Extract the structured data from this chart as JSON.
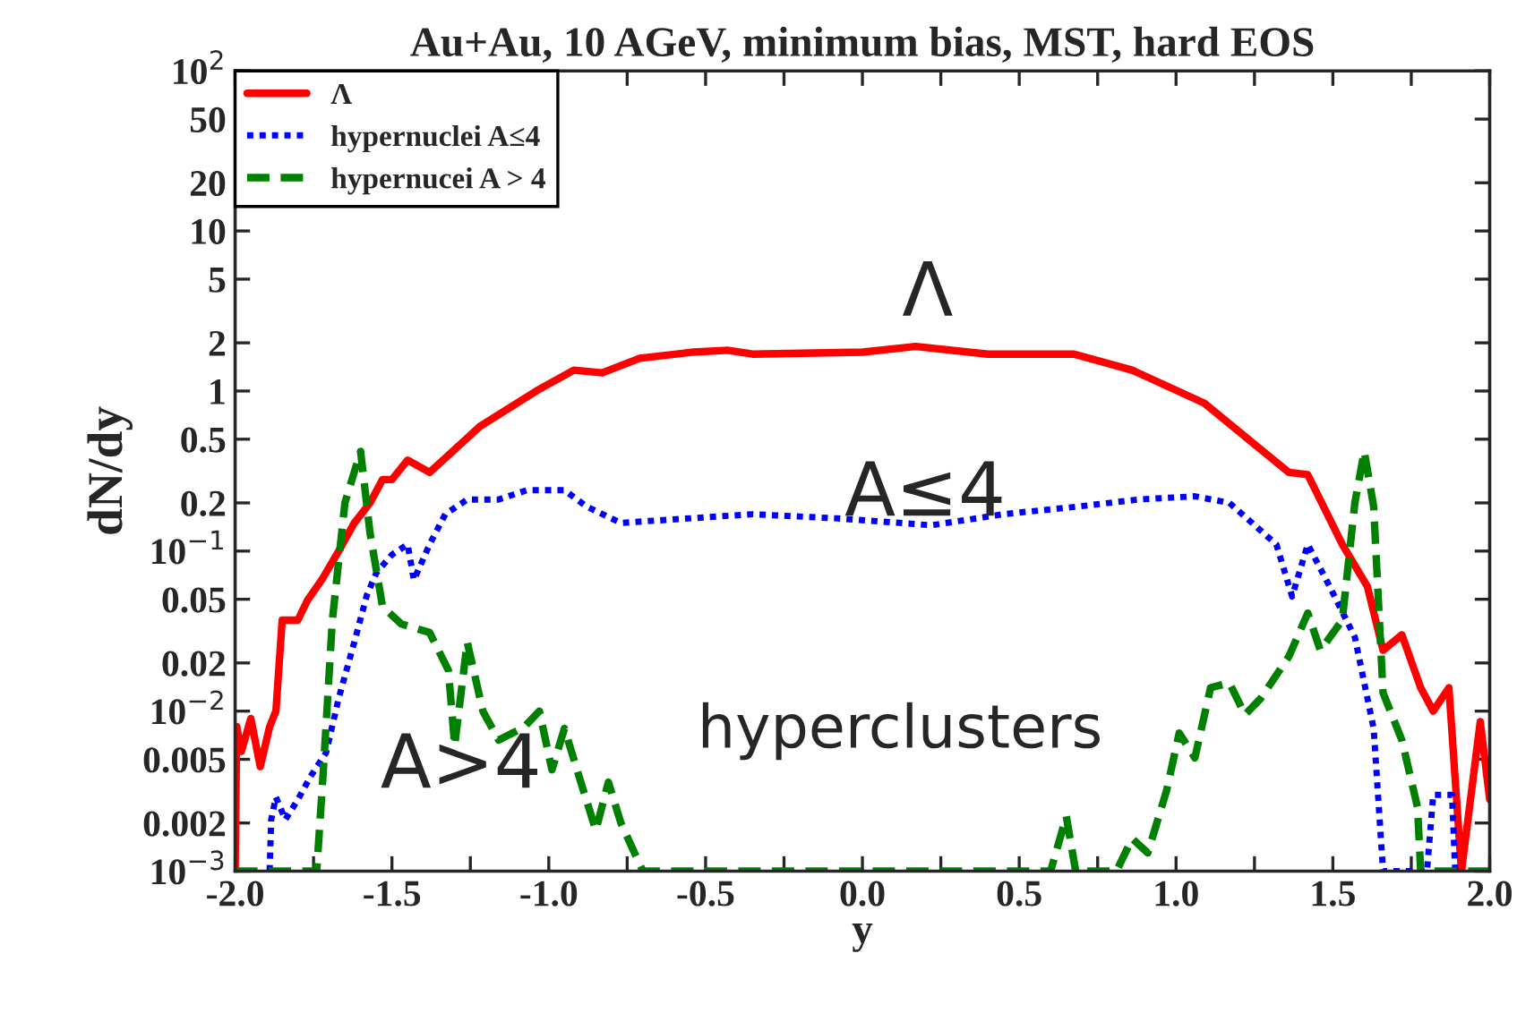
{
  "chart_data": {
    "type": "line",
    "title": "Au+Au, 10 AGeV, minimum bias, MST, hard EOS",
    "xlabel": "y",
    "ylabel": "dN/dy",
    "log": "y",
    "grid": false,
    "legend": "top left",
    "xlim": [
      -2.0,
      2.0
    ],
    "ylim": [
      0.001,
      100
    ],
    "xticks": [
      {
        "value": -2.0,
        "label": "-2.0"
      },
      {
        "value": -1.75,
        "label": null
      },
      {
        "value": -1.5,
        "label": "-1.5"
      },
      {
        "value": -1.25,
        "label": null
      },
      {
        "value": -1.0,
        "label": "-1.0"
      },
      {
        "value": -0.75,
        "label": null
      },
      {
        "value": -0.5,
        "label": "-0.5"
      },
      {
        "value": -0.25,
        "label": null
      },
      {
        "value": 0.0,
        "label": "0.0"
      },
      {
        "value": 0.25,
        "label": null
      },
      {
        "value": 0.5,
        "label": "0.5"
      },
      {
        "value": 0.75,
        "label": null
      },
      {
        "value": 1.0,
        "label": "1.0"
      },
      {
        "value": 1.25,
        "label": null
      },
      {
        "value": 1.5,
        "label": "1.5"
      },
      {
        "value": 1.75,
        "label": null
      },
      {
        "value": 2.0,
        "label": "2.0"
      }
    ],
    "yticks": [
      {
        "value": 0.001,
        "label": "10$^{−3}$"
      },
      0.002,
      0.005,
      {
        "value": 0.01,
        "label": "10$^{−2}$"
      },
      0.02,
      0.05,
      {
        "value": 0.1,
        "label": "10$^{−1}$"
      },
      0.2,
      0.5,
      1,
      2,
      5,
      10,
      20,
      50,
      {
        "value": 100,
        "label": "10$^{2}$"
      }
    ],
    "series": [
      {
        "name": "Λ",
        "color": "#ff0000",
        "line_style": "solid",
        "x": [
          -2.0,
          -1.995,
          -1.98,
          -1.95,
          -1.92,
          -1.89,
          -1.87,
          -1.85,
          -1.8,
          -1.77,
          -1.72,
          -1.67,
          -1.62,
          -1.57,
          -1.53,
          -1.5,
          -1.45,
          -1.38,
          -1.22,
          -1.04,
          -0.92,
          -0.83,
          -0.71,
          -0.54,
          -0.43,
          -0.35,
          0.0,
          0.17,
          0.4,
          0.675,
          0.86,
          1.09,
          1.23,
          1.36,
          1.42,
          1.53,
          1.61,
          1.66,
          1.72,
          1.78,
          1.82,
          1.87,
          1.91,
          1.97,
          2.0
        ],
        "values": [
          0.001,
          0.008,
          0.0056,
          0.009,
          0.0045,
          0.008,
          0.01,
          0.037,
          0.037,
          0.049,
          0.068,
          0.1,
          0.15,
          0.2,
          0.28,
          0.28,
          0.37,
          0.31,
          0.6,
          1.0,
          1.35,
          1.3,
          1.6,
          1.75,
          1.8,
          1.7,
          1.75,
          1.9,
          1.7,
          1.7,
          1.35,
          0.84,
          0.5,
          0.31,
          0.3,
          0.11,
          0.06,
          0.024,
          0.03,
          0.014,
          0.01,
          0.014,
          0.001,
          0.0086,
          0.0028
        ]
      },
      {
        "name": "hypernuclei A≤4",
        "color": "#0000ff",
        "line_style": "dotted",
        "x": [
          -1.89,
          -1.885,
          -1.87,
          -1.84,
          -1.8,
          -1.76,
          -1.71,
          -1.67,
          -1.62,
          -1.58,
          -1.55,
          -1.5,
          -1.45,
          -1.43,
          -1.38,
          -1.33,
          -1.26,
          -1.16,
          -1.07,
          -0.95,
          -0.88,
          -0.77,
          -0.35,
          -0.08,
          0.22,
          0.45,
          0.69,
          0.88,
          1.06,
          1.17,
          1.32,
          1.37,
          1.42,
          1.49,
          1.57,
          1.63,
          1.66,
          1.8,
          1.82,
          1.88,
          1.89
        ],
        "values": [
          0.001,
          0.0021,
          0.0029,
          0.0021,
          0.0028,
          0.0039,
          0.0055,
          0.012,
          0.027,
          0.053,
          0.073,
          0.095,
          0.11,
          0.066,
          0.11,
          0.17,
          0.21,
          0.21,
          0.24,
          0.24,
          0.19,
          0.15,
          0.17,
          0.16,
          0.145,
          0.17,
          0.19,
          0.21,
          0.22,
          0.2,
          0.11,
          0.052,
          0.11,
          0.06,
          0.029,
          0.0078,
          0.001,
          0.001,
          0.003,
          0.003,
          0.001
        ]
      },
      {
        "name": "hypernucei A > 4",
        "color": "#008000",
        "line_style": "dashed",
        "x": [
          -2.0,
          -1.74,
          -1.72,
          -1.69,
          -1.65,
          -1.6,
          -1.57,
          -1.53,
          -1.47,
          -1.38,
          -1.32,
          -1.3,
          -1.26,
          -1.21,
          -1.16,
          -1.08,
          -1.03,
          -0.99,
          -0.95,
          -0.91,
          -0.85,
          -0.81,
          -0.77,
          -0.7,
          0.6,
          0.65,
          0.68,
          0.73,
          0.81,
          0.86,
          0.91,
          0.97,
          1.01,
          1.06,
          1.11,
          1.17,
          1.22,
          1.27,
          1.36,
          1.42,
          1.46,
          1.53,
          1.57,
          1.6,
          1.63,
          1.66,
          1.72,
          1.77,
          1.78,
          2.0
        ],
        "values": [
          0.001,
          0.001,
          0.0039,
          0.037,
          0.2,
          0.42,
          0.13,
          0.045,
          0.035,
          0.031,
          0.018,
          0.0061,
          0.027,
          0.01,
          0.0066,
          0.0079,
          0.01,
          0.0043,
          0.0078,
          0.0043,
          0.0018,
          0.0036,
          0.002,
          0.001,
          0.001,
          0.0022,
          0.001,
          0.001,
          0.001,
          0.0016,
          0.0013,
          0.0032,
          0.0073,
          0.0051,
          0.014,
          0.015,
          0.0095,
          0.012,
          0.022,
          0.041,
          0.024,
          0.037,
          0.2,
          0.42,
          0.19,
          0.013,
          0.0066,
          0.0025,
          0.001,
          0.001
        ]
      }
    ],
    "annotations": [
      "Λ",
      "A≤4",
      "A>4",
      "hyperclusters"
    ]
  }
}
